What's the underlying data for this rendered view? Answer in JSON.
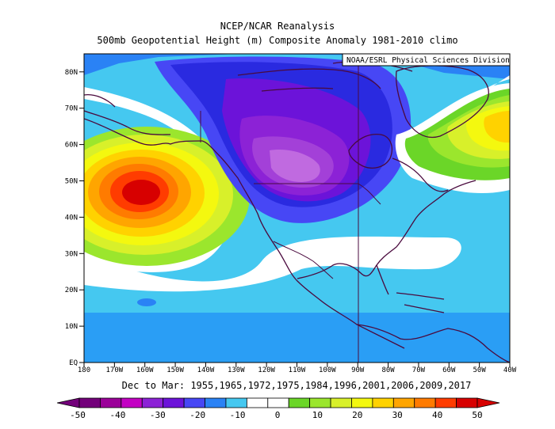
{
  "header": {
    "title": "NCEP/NCAR Reanalysis",
    "subtitle": "500mb Geopotential Height (m) Composite Anomaly 1981-2010 climo",
    "credit": "NOAA/ESRL Physical Sciences Division"
  },
  "caption": "Dec to Mar: 1955,1965,1972,1975,1984,1996,2001,2006,2009,2017",
  "map": {
    "projection": "cylindrical",
    "lon_range": [
      "180",
      "40W"
    ],
    "lat_range": [
      "EQ",
      "85N"
    ],
    "lon_labels": [
      "180",
      "170W",
      "160W",
      "150W",
      "140W",
      "130W",
      "120W",
      "110W",
      "100W",
      "90W",
      "80W",
      "70W",
      "60W",
      "50W",
      "40W"
    ],
    "lat_labels": [
      "EQ",
      "10N",
      "20N",
      "30N",
      "40N",
      "50N",
      "60N",
      "70N",
      "80N"
    ],
    "features": {
      "positive_anomaly_center": "north-pacific",
      "negative_anomaly_center": "western-canada",
      "secondary_positive": "greenland"
    }
  },
  "colorbar": {
    "labels": [
      "-50",
      "-40",
      "-30",
      "-20",
      "-10",
      "0",
      "10",
      "20",
      "30",
      "40",
      "50"
    ],
    "colors": [
      "#73007a",
      "#9b0099",
      "#c300c3",
      "#8c22d6",
      "#6c13d9",
      "#4747f5",
      "#2a82f5",
      "#45c8f0",
      "#ffffff",
      "#ffffff",
      "#6bd628",
      "#9be62d",
      "#d8f02a",
      "#f4f80f",
      "#ffd200",
      "#ffa500",
      "#ff7b00",
      "#ff3c00",
      "#d70000"
    ]
  }
}
